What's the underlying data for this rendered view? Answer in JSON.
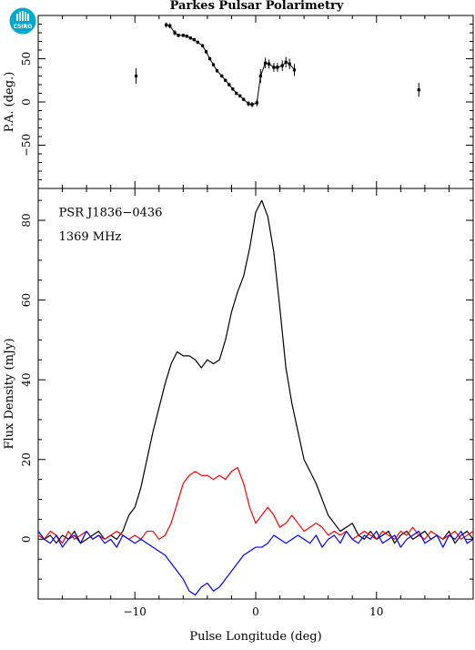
{
  "title": "Parkes Pulsar Polarimetry",
  "logo_text": "CSIRO",
  "colors": {
    "total": "#000000",
    "linear": "#ff0000",
    "circular": "#0000ff",
    "axes": "#000000",
    "logo": "#00a9ce"
  },
  "chart_data": [
    {
      "type": "scatter",
      "panel": "position-angle",
      "title": "Parkes Pulsar Polarimetry",
      "xlabel": "",
      "ylabel": "P.A. (deg.)",
      "xlim": [
        -18,
        18
      ],
      "ylim": [
        -100,
        100
      ],
      "yticks": [
        -50,
        0,
        50
      ],
      "grid": false,
      "points": [
        {
          "x": -9.9,
          "y": 30,
          "err": 9
        },
        {
          "x": -7.4,
          "y": 89,
          "err": 3
        },
        {
          "x": -7.1,
          "y": 88,
          "err": 3
        },
        {
          "x": -6.7,
          "y": 80,
          "err": 3
        },
        {
          "x": -6.4,
          "y": 77,
          "err": 2
        },
        {
          "x": -6.0,
          "y": 77,
          "err": 2
        },
        {
          "x": -5.7,
          "y": 76,
          "err": 2
        },
        {
          "x": -5.4,
          "y": 74,
          "err": 2
        },
        {
          "x": -5.1,
          "y": 72,
          "err": 2
        },
        {
          "x": -4.8,
          "y": 69,
          "err": 2
        },
        {
          "x": -4.4,
          "y": 65,
          "err": 2
        },
        {
          "x": -4.1,
          "y": 58,
          "err": 2
        },
        {
          "x": -3.8,
          "y": 50,
          "err": 2
        },
        {
          "x": -3.5,
          "y": 43,
          "err": 2
        },
        {
          "x": -3.2,
          "y": 36,
          "err": 2
        },
        {
          "x": -2.8,
          "y": 30,
          "err": 2
        },
        {
          "x": -2.5,
          "y": 25,
          "err": 2
        },
        {
          "x": -2.2,
          "y": 20,
          "err": 2
        },
        {
          "x": -1.9,
          "y": 15,
          "err": 2
        },
        {
          "x": -1.6,
          "y": 10,
          "err": 2
        },
        {
          "x": -1.3,
          "y": 7,
          "err": 2
        },
        {
          "x": -1.0,
          "y": 3,
          "err": 2
        },
        {
          "x": -0.6,
          "y": -2,
          "err": 3
        },
        {
          "x": -0.3,
          "y": -3,
          "err": 3
        },
        {
          "x": 0.1,
          "y": -1,
          "err": 4
        },
        {
          "x": 0.4,
          "y": 30,
          "err": 8
        },
        {
          "x": 0.8,
          "y": 45,
          "err": 6
        },
        {
          "x": 1.1,
          "y": 44,
          "err": 5
        },
        {
          "x": 1.5,
          "y": 40,
          "err": 5
        },
        {
          "x": 1.8,
          "y": 40,
          "err": 5
        },
        {
          "x": 2.2,
          "y": 42,
          "err": 6
        },
        {
          "x": 2.5,
          "y": 46,
          "err": 6
        },
        {
          "x": 2.8,
          "y": 44,
          "err": 6
        },
        {
          "x": 3.2,
          "y": 37,
          "err": 7
        },
        {
          "x": 13.5,
          "y": 14,
          "err": 8
        }
      ]
    },
    {
      "type": "line",
      "panel": "profile",
      "xlabel": "Pulse Longitude (deg)",
      "ylabel": "Flux Density (mJy)",
      "xlim": [
        -18,
        18
      ],
      "ylim": [
        -15,
        88
      ],
      "xticks": [
        -10,
        0,
        10
      ],
      "yticks": [
        0,
        20,
        40,
        60,
        80
      ],
      "grid": false,
      "annotations": [
        "PSR J1836−0436",
        "1369 MHz"
      ],
      "x": [
        -18.0,
        -17.5,
        -17.0,
        -16.5,
        -16.0,
        -15.5,
        -15.0,
        -14.5,
        -14.0,
        -13.5,
        -13.0,
        -12.5,
        -12.0,
        -11.5,
        -11.0,
        -10.5,
        -10.0,
        -9.5,
        -9.0,
        -8.5,
        -8.0,
        -7.5,
        -7.0,
        -6.5,
        -6.0,
        -5.5,
        -5.0,
        -4.5,
        -4.0,
        -3.5,
        -3.0,
        -2.5,
        -2.0,
        -1.5,
        -1.0,
        -0.5,
        0.0,
        0.5,
        1.0,
        1.5,
        2.0,
        2.5,
        3.0,
        3.5,
        4.0,
        4.5,
        5.0,
        5.5,
        6.0,
        6.5,
        7.0,
        7.5,
        8.0,
        8.5,
        9.0,
        9.5,
        10.0,
        10.5,
        11.0,
        11.5,
        12.0,
        12.5,
        13.0,
        13.5,
        14.0,
        14.5,
        15.0,
        15.5,
        16.0,
        16.5,
        17.0,
        17.5,
        18.0
      ],
      "series": [
        {
          "key": "total",
          "values": [
            2,
            0,
            1,
            -1,
            1,
            0,
            2,
            -1,
            0,
            1,
            2,
            0,
            1,
            0,
            2,
            6,
            8,
            13,
            20,
            27,
            33,
            39,
            44,
            47,
            46,
            46,
            45,
            43,
            45,
            44,
            45,
            50,
            57,
            62,
            66,
            73,
            82,
            85,
            81,
            72,
            58,
            43,
            34,
            27,
            20,
            17,
            14,
            10,
            6,
            4,
            2,
            3,
            4,
            1,
            0,
            2,
            0,
            1,
            2,
            -1,
            1,
            2,
            0,
            1,
            2,
            0,
            1,
            0,
            2,
            -1,
            1,
            2,
            0
          ]
        },
        {
          "key": "linear",
          "values": [
            1,
            0,
            2,
            1,
            -1,
            2,
            0,
            1,
            2,
            0,
            1,
            0,
            1,
            2,
            1,
            0,
            1,
            0,
            2,
            2,
            0,
            1,
            4,
            9,
            14,
            16,
            17,
            16,
            16,
            15,
            16,
            15,
            17,
            18,
            14,
            8,
            4,
            6,
            8,
            6,
            3,
            4,
            6,
            4,
            2,
            3,
            4,
            3,
            1,
            2,
            1,
            2,
            0,
            1,
            2,
            1,
            0,
            2,
            1,
            0,
            2,
            1,
            3,
            1,
            0,
            2,
            1,
            0,
            1,
            2,
            0,
            1,
            2
          ]
        },
        {
          "key": "circular",
          "values": [
            2,
            0,
            -1,
            1,
            -2,
            0,
            1,
            -1,
            2,
            0,
            1,
            -1,
            0,
            -2,
            1,
            0,
            -1,
            0,
            -1,
            -2,
            -3,
            -4,
            -6,
            -8,
            -10,
            -13,
            -14,
            -12,
            -11,
            -13,
            -12,
            -10,
            -8,
            -6,
            -4,
            -3,
            -2,
            -2,
            -1,
            1,
            0,
            -1,
            0,
            1,
            0,
            -1,
            1,
            -2,
            0,
            1,
            -1,
            2,
            0,
            -1,
            1,
            0,
            2,
            -1,
            0,
            1,
            -2,
            0,
            1,
            2,
            -1,
            0,
            1,
            -2,
            1,
            0,
            2,
            -1,
            0
          ]
        }
      ]
    }
  ]
}
